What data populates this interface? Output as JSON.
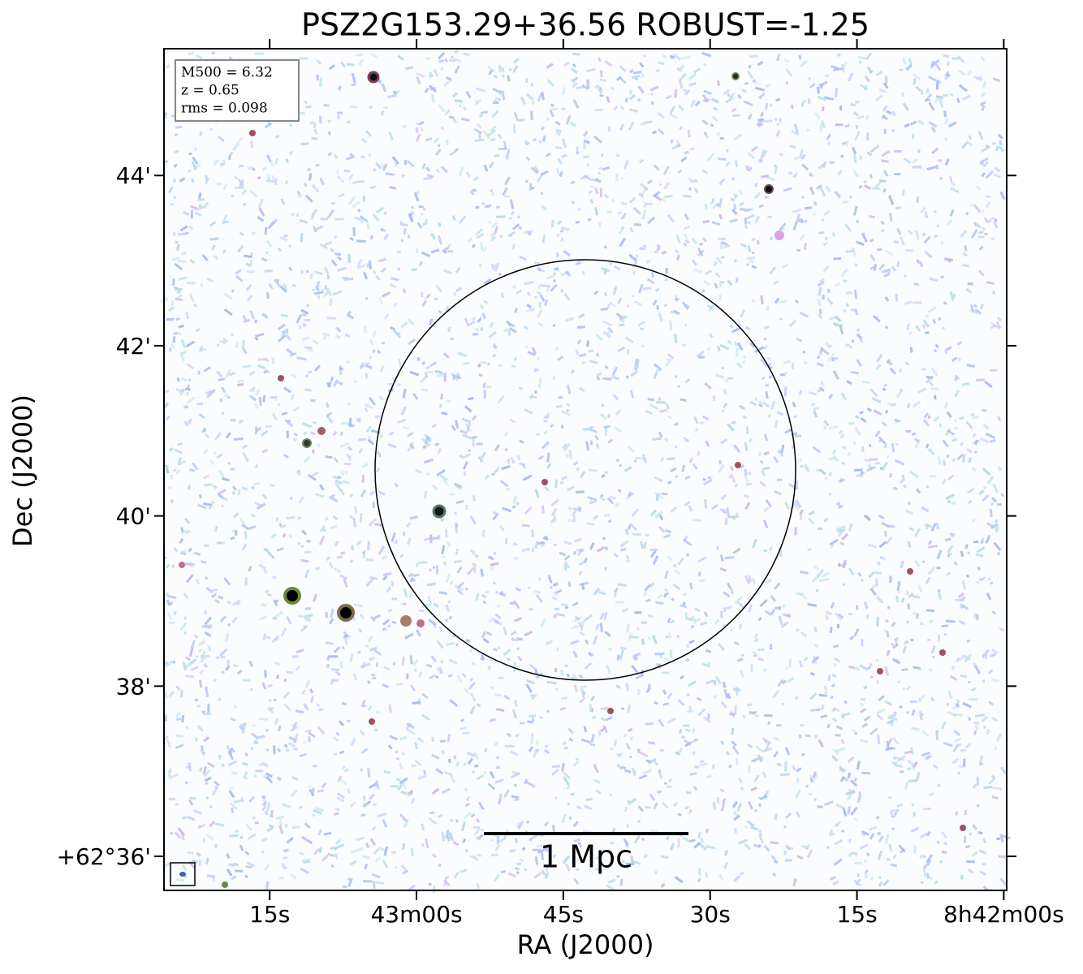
{
  "chart_data": {
    "type": "image",
    "title": "PSZ2G153.29+36.56 ROBUST=-1.25",
    "xlabel": "RA (J2000)",
    "ylabel": "Dec (J2000)",
    "xlim": [
      85.8,
      -0.3
    ],
    "ylim": [
      35.6,
      45.49
    ],
    "xticks": [
      {
        "value": 75,
        "label": "15s"
      },
      {
        "value": 60,
        "label": "43m00s"
      },
      {
        "value": 45,
        "label": "45s"
      },
      {
        "value": 30,
        "label": "30s"
      },
      {
        "value": 15,
        "label": "15s"
      },
      {
        "value": 0,
        "label": "8h42m00s"
      }
    ],
    "yticks": [
      {
        "value": 36,
        "label": "+62°36'"
      },
      {
        "value": 38,
        "label": "38'"
      },
      {
        "value": 40,
        "label": "40'"
      },
      {
        "value": 42,
        "label": "42'"
      },
      {
        "value": 44,
        "label": "44'"
      }
    ],
    "annotations": [
      "M500 = 6.32",
      "z = 0.65",
      "rms = 0.098"
    ],
    "scalebar_label": "1 Mpc"
  }
}
